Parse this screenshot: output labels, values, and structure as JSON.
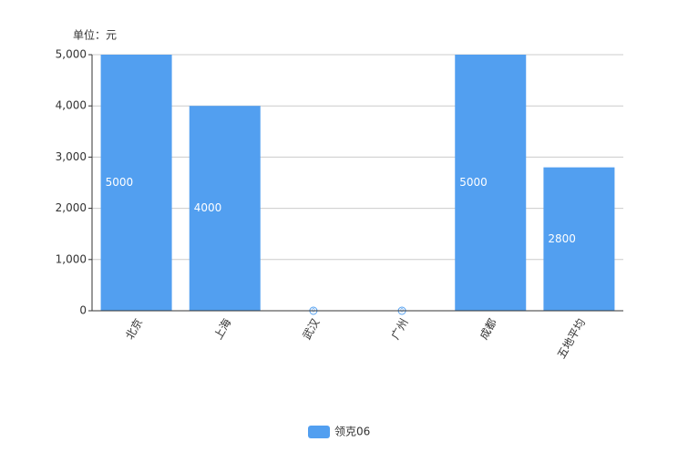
{
  "chart_data": {
    "type": "bar",
    "unit_label": "单位：元",
    "categories": [
      "北京",
      "上海",
      "武汉",
      "广州",
      "成都",
      "五地平均"
    ],
    "series": [
      {
        "name": "领克06",
        "color": "#529ff0",
        "values": [
          5000,
          4000,
          0,
          0,
          5000,
          2800
        ]
      }
    ],
    "ylim": [
      0,
      5000
    ],
    "yticks": [
      0,
      {
        "value": 1000,
        "label": "1,000"
      },
      {
        "value": 2000,
        "label": "2,000"
      },
      {
        "value": 3000,
        "label": "3,000"
      },
      {
        "value": 4000,
        "label": "4,000"
      },
      {
        "value": 5000,
        "label": "5,000"
      }
    ],
    "grid": true,
    "legend": "bottom"
  }
}
